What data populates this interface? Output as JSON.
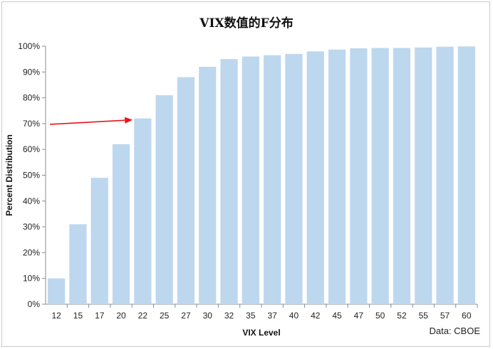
{
  "chart_data": {
    "type": "bar",
    "title": "VIX数值的F分布",
    "xlabel": "VIX Level",
    "ylabel": "Percent Distribution",
    "source": "Data: CBOE",
    "categories": [
      "12",
      "15",
      "17",
      "20",
      "22",
      "25",
      "27",
      "30",
      "32",
      "35",
      "37",
      "40",
      "42",
      "45",
      "47",
      "50",
      "52",
      "55",
      "57",
      "60"
    ],
    "values": [
      10,
      31,
      49,
      62,
      72,
      81,
      88,
      92,
      95,
      96,
      96.5,
      97,
      98,
      98.7,
      99.2,
      99.3,
      99.3,
      99.5,
      99.8,
      99.9
    ],
    "value_unit": "%",
    "ylim": [
      0,
      100
    ],
    "yticks": [
      "0%",
      "10%",
      "20%",
      "30%",
      "40%",
      "50%",
      "60%",
      "70%",
      "80%",
      "90%",
      "100%"
    ],
    "grid": false,
    "colors": {
      "bar": "#bdd7ee",
      "arrow": "#e8141b",
      "axis": "#8c8c8c"
    },
    "annotations": [
      {
        "type": "arrow",
        "from_value": 70,
        "to_category": "22",
        "to_value": 72
      }
    ]
  }
}
